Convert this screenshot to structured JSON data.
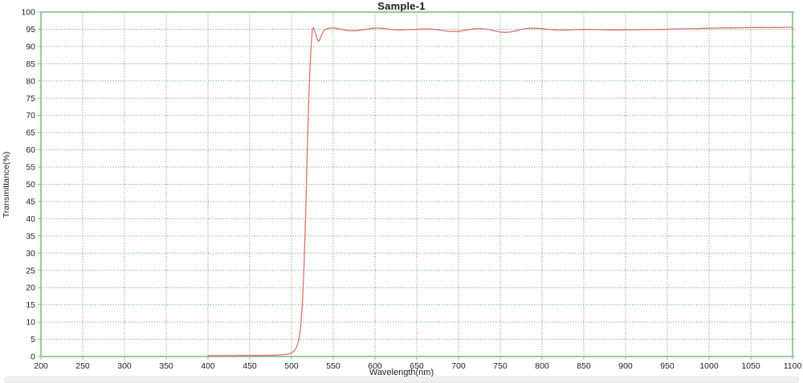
{
  "chart_data": {
    "type": "line",
    "title": "Sample-1",
    "xlabel": "Wavelength(nm)",
    "ylabel": "Transmittance(%)",
    "xlim": [
      200,
      1100
    ],
    "ylim": [
      0,
      100
    ],
    "x_ticks": [
      200,
      250,
      300,
      350,
      400,
      450,
      500,
      550,
      600,
      650,
      700,
      750,
      800,
      850,
      900,
      950,
      1000,
      1050,
      1100
    ],
    "y_ticks": [
      0,
      5,
      10,
      15,
      20,
      25,
      30,
      35,
      40,
      45,
      50,
      55,
      60,
      65,
      70,
      75,
      80,
      85,
      90,
      95,
      100
    ],
    "grid": true,
    "grid_style": "dotted",
    "legend_position": "none",
    "colors": {
      "plot_border": "#7fc083",
      "gridline": "#4f9f55",
      "curve": "#e36f6f",
      "tick_text": "#222222",
      "title_text": "#1a1a1a"
    },
    "series": [
      {
        "name": "Sample-1",
        "color": "#e36f6f",
        "points": [
          [
            400,
            0.25
          ],
          [
            410,
            0.25
          ],
          [
            420,
            0.25
          ],
          [
            430,
            0.25
          ],
          [
            440,
            0.3
          ],
          [
            450,
            0.3
          ],
          [
            460,
            0.3
          ],
          [
            470,
            0.35
          ],
          [
            480,
            0.4
          ],
          [
            488,
            0.5
          ],
          [
            494,
            0.6
          ],
          [
            499,
            0.9
          ],
          [
            503,
            1.5
          ],
          [
            506,
            2.6
          ],
          [
            509,
            5
          ],
          [
            511,
            8.5
          ],
          [
            513,
            15
          ],
          [
            515,
            26
          ],
          [
            517,
            42
          ],
          [
            519,
            61
          ],
          [
            521,
            77
          ],
          [
            523,
            88
          ],
          [
            524,
            92
          ],
          [
            525,
            94.8
          ],
          [
            526,
            95.5
          ],
          [
            527,
            95.1
          ],
          [
            529,
            93.5
          ],
          [
            531,
            92
          ],
          [
            532.5,
            91.5
          ],
          [
            534,
            92.1
          ],
          [
            536,
            93.3
          ],
          [
            538,
            94.3
          ],
          [
            540,
            94.9
          ],
          [
            543,
            95.2
          ],
          [
            546,
            95.35
          ],
          [
            550,
            95.4
          ],
          [
            554,
            95.3
          ],
          [
            558,
            95.1
          ],
          [
            563,
            94.8
          ],
          [
            568,
            94.6
          ],
          [
            573,
            94.55
          ],
          [
            578,
            94.6
          ],
          [
            583,
            94.75
          ],
          [
            588,
            94.95
          ],
          [
            593,
            95.15
          ],
          [
            598,
            95.3
          ],
          [
            603,
            95.35
          ],
          [
            608,
            95.3
          ],
          [
            613,
            95.15
          ],
          [
            618,
            95.0
          ],
          [
            624,
            94.85
          ],
          [
            630,
            94.8
          ],
          [
            636,
            94.85
          ],
          [
            642,
            94.9
          ],
          [
            648,
            94.95
          ],
          [
            654,
            95.05
          ],
          [
            660,
            95.1
          ],
          [
            666,
            95.05
          ],
          [
            672,
            94.95
          ],
          [
            678,
            94.75
          ],
          [
            684,
            94.55
          ],
          [
            690,
            94.4
          ],
          [
            696,
            94.35
          ],
          [
            702,
            94.45
          ],
          [
            708,
            94.7
          ],
          [
            714,
            94.95
          ],
          [
            720,
            95.15
          ],
          [
            726,
            95.2
          ],
          [
            732,
            95.1
          ],
          [
            738,
            94.85
          ],
          [
            744,
            94.5
          ],
          [
            750,
            94.2
          ],
          [
            756,
            94.1
          ],
          [
            762,
            94.2
          ],
          [
            768,
            94.5
          ],
          [
            774,
            94.9
          ],
          [
            780,
            95.2
          ],
          [
            786,
            95.3
          ],
          [
            792,
            95.3
          ],
          [
            798,
            95.2
          ],
          [
            804,
            95.05
          ],
          [
            810,
            94.9
          ],
          [
            816,
            94.8
          ],
          [
            822,
            94.75
          ],
          [
            828,
            94.8
          ],
          [
            834,
            94.85
          ],
          [
            840,
            94.9
          ],
          [
            848,
            94.95
          ],
          [
            856,
            94.95
          ],
          [
            864,
            94.9
          ],
          [
            872,
            94.85
          ],
          [
            880,
            94.8
          ],
          [
            888,
            94.8
          ],
          [
            896,
            94.8
          ],
          [
            904,
            94.85
          ],
          [
            912,
            94.85
          ],
          [
            920,
            94.9
          ],
          [
            928,
            94.9
          ],
          [
            936,
            94.95
          ],
          [
            944,
            94.95
          ],
          [
            952,
            95.0
          ],
          [
            960,
            95.05
          ],
          [
            968,
            95.1
          ],
          [
            976,
            95.15
          ],
          [
            984,
            95.2
          ],
          [
            992,
            95.25
          ],
          [
            1000,
            95.3
          ],
          [
            1010,
            95.35
          ],
          [
            1020,
            95.4
          ],
          [
            1030,
            95.4
          ],
          [
            1040,
            95.45
          ],
          [
            1050,
            95.5
          ],
          [
            1060,
            95.5
          ],
          [
            1070,
            95.5
          ],
          [
            1080,
            95.5
          ],
          [
            1090,
            95.55
          ],
          [
            1100,
            95.6
          ]
        ]
      }
    ]
  }
}
